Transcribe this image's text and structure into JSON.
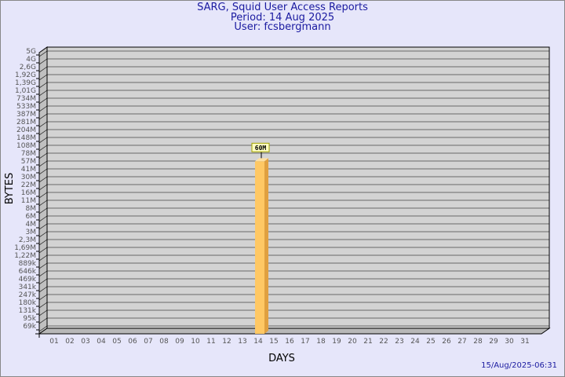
{
  "header": {
    "title": "SARG, Squid User Access Reports",
    "period": "Period: 14 Aug 2025",
    "user": "User: fcsbergmann"
  },
  "timestamp": "15/Aug/2025-06:31",
  "chart_data": {
    "type": "bar",
    "xlabel": "DAYS",
    "ylabel": "BYTES",
    "y_scale": "log",
    "y_tick_labels": [
      "5G",
      "4G",
      "2,6G",
      "1,92G",
      "1,39G",
      "1,01G",
      "734M",
      "533M",
      "387M",
      "281M",
      "204M",
      "148M",
      "108M",
      "78M",
      "57M",
      "41M",
      "30M",
      "22M",
      "16M",
      "11M",
      "8M",
      "6M",
      "4M",
      "3M",
      "2,3M",
      "1,69M",
      "1,22M",
      "889k",
      "646k",
      "469k",
      "341k",
      "247k",
      "180k",
      "131k",
      "95k",
      "69k"
    ],
    "categories": [
      "01",
      "02",
      "03",
      "04",
      "05",
      "06",
      "07",
      "08",
      "09",
      "10",
      "11",
      "12",
      "13",
      "14",
      "15",
      "16",
      "17",
      "18",
      "19",
      "20",
      "21",
      "22",
      "23",
      "24",
      "25",
      "26",
      "27",
      "28",
      "29",
      "30",
      "31"
    ],
    "bars": [
      {
        "day": "14",
        "value_label": "60M",
        "value_bytes": 60000000
      }
    ],
    "grid": true,
    "colors": {
      "background": "#e6e6fa",
      "plot": "#d3d3d3",
      "bar": "#ffc864",
      "bar_side": "#e0a040",
      "title": "#1a1aa0"
    }
  }
}
